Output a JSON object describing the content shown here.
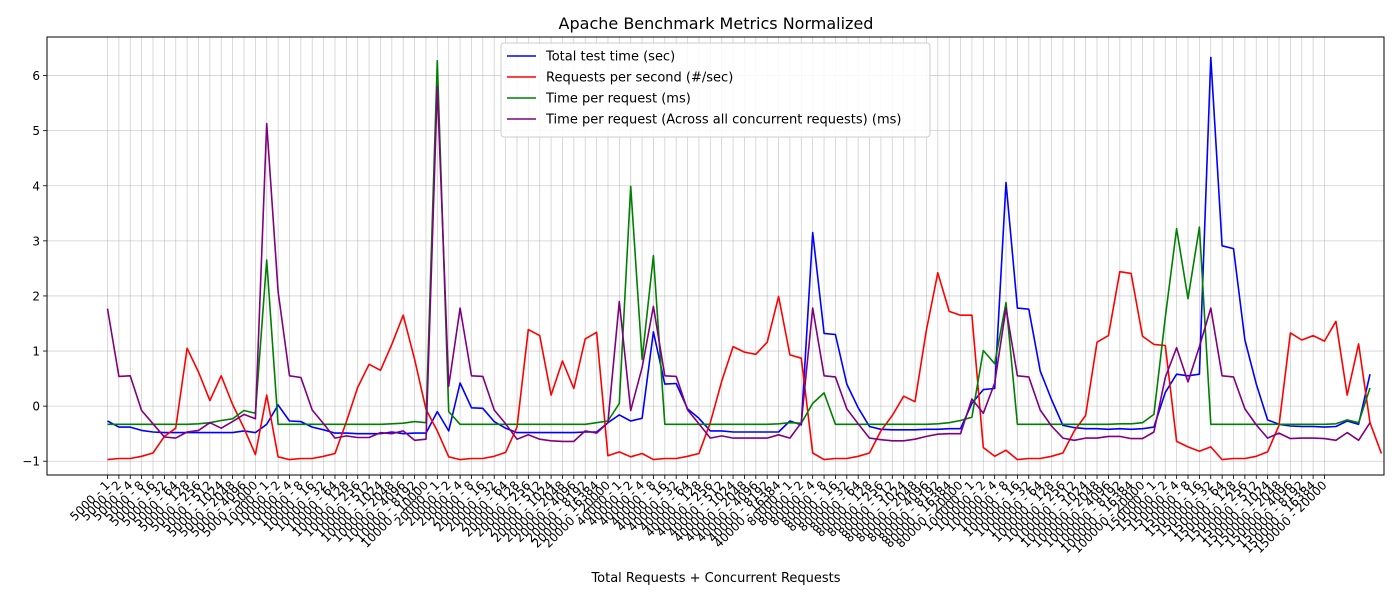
{
  "chart_data": {
    "type": "line",
    "title": "Apache Benchmark Metrics Normalized",
    "xlabel": "Total Requests + Concurrent Requests",
    "ylabel": "",
    "ylim": [
      -1.25,
      6.7
    ],
    "yticks": [
      -1,
      0,
      1,
      2,
      3,
      4,
      5,
      6
    ],
    "grid": true,
    "legend_position": "top-center",
    "groups": [
      {
        "total": "5000",
        "concurrency": [
          "1",
          "2",
          "4",
          "8",
          "16",
          "32",
          "64",
          "128",
          "256",
          "512",
          "1024",
          "2048",
          "4096",
          "5000"
        ]
      },
      {
        "total": "10000",
        "concurrency": [
          "1",
          "2",
          "4",
          "8",
          "16",
          "32",
          "64",
          "128",
          "256",
          "512",
          "1024",
          "2048",
          "4096",
          "8192",
          "10000"
        ]
      },
      {
        "total": "20000",
        "concurrency": [
          "1",
          "2",
          "4",
          "8",
          "16",
          "32",
          "64",
          "128",
          "256",
          "512",
          "1024",
          "2048",
          "4096",
          "8192",
          "16384",
          "20000"
        ]
      },
      {
        "total": "40000",
        "concurrency": [
          "1",
          "2",
          "4",
          "8",
          "16",
          "32",
          "64",
          "128",
          "256",
          "512",
          "1024",
          "2048",
          "4096",
          "8192",
          "16384"
        ]
      },
      {
        "total": "80000",
        "concurrency": [
          "1",
          "2",
          "4",
          "8",
          "16",
          "32",
          "64",
          "128",
          "256",
          "512",
          "1024",
          "2048",
          "4096",
          "8192",
          "16384",
          "20000"
        ]
      },
      {
        "total": "100000",
        "concurrency": [
          "1",
          "2",
          "4",
          "8",
          "16",
          "32",
          "64",
          "128",
          "256",
          "512",
          "1024",
          "2048",
          "4096",
          "8192",
          "16384",
          "20000"
        ]
      },
      {
        "total": "150000",
        "concurrency": [
          "1",
          "2",
          "4",
          "8",
          "16",
          "32",
          "64",
          "128",
          "256",
          "512",
          "1024",
          "2048",
          "4096",
          "8192",
          "16384",
          "20000"
        ]
      }
    ],
    "series": [
      {
        "name": "Total test time (sec)",
        "color": "#0000ff",
        "values": [
          -0.27,
          -0.38,
          -0.38,
          -0.44,
          -0.47,
          -0.48,
          -0.48,
          -0.48,
          -0.48,
          -0.48,
          -0.48,
          -0.48,
          -0.45,
          -0.48,
          -0.33,
          0.02,
          -0.27,
          -0.28,
          -0.38,
          -0.43,
          -0.49,
          -0.49,
          -0.5,
          -0.5,
          -0.5,
          -0.47,
          -0.5,
          -0.49,
          -0.49,
          -0.1,
          -0.45,
          0.42,
          -0.03,
          -0.04,
          -0.28,
          -0.4,
          -0.48,
          -0.48,
          -0.48,
          -0.48,
          -0.48,
          -0.48,
          -0.47,
          -0.47,
          -0.3,
          -0.16,
          -0.27,
          -0.22,
          1.35,
          0.4,
          0.41,
          -0.05,
          -0.22,
          -0.45,
          -0.45,
          -0.47,
          -0.47,
          -0.47,
          -0.47,
          -0.47,
          -0.27,
          -0.34,
          3.15,
          1.32,
          1.3,
          0.4,
          -0.03,
          -0.37,
          -0.42,
          -0.43,
          -0.43,
          -0.43,
          -0.42,
          -0.42,
          -0.41,
          -0.41,
          0.05,
          0.3,
          0.32,
          4.06,
          1.78,
          1.76,
          0.64,
          0.12,
          -0.35,
          -0.39,
          -0.41,
          -0.41,
          -0.42,
          -0.41,
          -0.42,
          -0.41,
          -0.38,
          0.25,
          0.58,
          0.55,
          0.58,
          6.33,
          2.91,
          2.86,
          1.2,
          0.4,
          -0.25,
          -0.33,
          -0.36,
          -0.37,
          -0.37,
          -0.38,
          -0.37,
          -0.27,
          -0.33,
          0.58
        ]
      },
      {
        "name": "Requests per second (#/sec)",
        "color": "#ff0000",
        "values": [
          -0.97,
          -0.95,
          -0.95,
          -0.91,
          -0.85,
          -0.55,
          -0.4,
          1.05,
          0.62,
          0.1,
          0.55,
          0.03,
          -0.4,
          -0.88,
          0.2,
          -0.92,
          -0.97,
          -0.95,
          -0.95,
          -0.91,
          -0.86,
          -0.28,
          0.34,
          0.76,
          0.65,
          1.12,
          1.65,
          0.85,
          -0.06,
          -0.45,
          -0.92,
          -0.97,
          -0.95,
          -0.95,
          -0.91,
          -0.84,
          -0.38,
          1.39,
          1.28,
          0.2,
          0.82,
          0.32,
          1.22,
          1.34,
          -0.9,
          -0.83,
          -0.92,
          -0.86,
          -0.97,
          -0.95,
          -0.95,
          -0.91,
          -0.86,
          -0.3,
          0.45,
          1.08,
          0.98,
          0.94,
          1.16,
          1.99,
          0.93,
          0.87,
          -0.85,
          -0.97,
          -0.95,
          -0.95,
          -0.91,
          -0.85,
          -0.45,
          -0.17,
          0.18,
          0.08,
          1.38,
          2.42,
          1.72,
          1.65,
          1.65,
          -0.75,
          -0.91,
          -0.8,
          -0.97,
          -0.95,
          -0.95,
          -0.91,
          -0.85,
          -0.45,
          -0.17,
          1.16,
          1.28,
          2.44,
          2.41,
          1.27,
          1.12,
          1.1,
          -0.64,
          -0.74,
          -0.82,
          -0.74,
          -0.97,
          -0.95,
          -0.95,
          -0.91,
          -0.83,
          -0.35,
          1.33,
          1.2,
          1.28,
          1.18,
          1.54,
          0.2,
          1.13,
          -0.3,
          -0.86
        ]
      },
      {
        "name": "Time per request (ms)",
        "color": "#008000",
        "values": [
          -0.33,
          -0.33,
          -0.33,
          -0.33,
          -0.33,
          -0.33,
          -0.33,
          -0.33,
          -0.32,
          -0.3,
          -0.26,
          -0.23,
          -0.08,
          -0.13,
          2.65,
          -0.33,
          -0.33,
          -0.33,
          -0.33,
          -0.33,
          -0.33,
          -0.33,
          -0.33,
          -0.33,
          -0.33,
          -0.32,
          -0.31,
          -0.28,
          -0.3,
          6.27,
          -0.1,
          -0.33,
          -0.33,
          -0.33,
          -0.33,
          -0.33,
          -0.33,
          -0.33,
          -0.33,
          -0.33,
          -0.33,
          -0.33,
          -0.33,
          -0.3,
          -0.27,
          0.05,
          3.99,
          0.85,
          2.73,
          -0.33,
          -0.33,
          -0.33,
          -0.33,
          -0.33,
          -0.33,
          -0.33,
          -0.33,
          -0.33,
          -0.33,
          -0.32,
          -0.3,
          -0.31,
          0.05,
          0.24,
          -0.33,
          -0.33,
          -0.33,
          -0.33,
          -0.33,
          -0.33,
          -0.33,
          -0.33,
          -0.33,
          -0.32,
          -0.3,
          -0.26,
          -0.2,
          1.01,
          0.77,
          1.88,
          -0.33,
          -0.33,
          -0.33,
          -0.33,
          -0.33,
          -0.33,
          -0.33,
          -0.33,
          -0.33,
          -0.32,
          -0.32,
          -0.3,
          -0.15,
          1.61,
          3.22,
          1.95,
          3.25,
          -0.33,
          -0.33,
          -0.33,
          -0.33,
          -0.33,
          -0.33,
          -0.33,
          -0.33,
          -0.33,
          -0.33,
          -0.33,
          -0.32,
          -0.25,
          -0.3,
          0.33
        ]
      },
      {
        "name": "Time per request (Across all concurrent requests) (ms)",
        "color": "#800080",
        "values": [
          1.77,
          0.54,
          0.55,
          -0.08,
          -0.32,
          -0.56,
          -0.58,
          -0.47,
          -0.44,
          -0.3,
          -0.4,
          -0.28,
          -0.15,
          -0.23,
          5.13,
          2.08,
          0.55,
          0.52,
          -0.07,
          -0.32,
          -0.58,
          -0.54,
          -0.57,
          -0.57,
          -0.48,
          -0.5,
          -0.45,
          -0.62,
          -0.6,
          5.8,
          0.36,
          1.78,
          0.55,
          0.54,
          -0.07,
          -0.32,
          -0.6,
          -0.52,
          -0.6,
          -0.63,
          -0.64,
          -0.64,
          -0.45,
          -0.49,
          -0.3,
          1.9,
          -0.08,
          0.7,
          1.81,
          0.55,
          0.54,
          -0.07,
          -0.32,
          -0.58,
          -0.54,
          -0.58,
          -0.58,
          -0.58,
          -0.58,
          -0.52,
          -0.58,
          -0.3,
          1.78,
          0.55,
          0.53,
          -0.05,
          -0.32,
          -0.58,
          -0.61,
          -0.63,
          -0.63,
          -0.6,
          -0.55,
          -0.51,
          -0.5,
          -0.5,
          0.13,
          -0.13,
          0.42,
          1.78,
          0.55,
          0.53,
          -0.07,
          -0.36,
          -0.58,
          -0.62,
          -0.58,
          -0.58,
          -0.55,
          -0.55,
          -0.59,
          -0.59,
          -0.47,
          0.52,
          1.06,
          0.44,
          1.08,
          1.78,
          0.55,
          0.53,
          -0.05,
          -0.34,
          -0.58,
          -0.49,
          -0.59,
          -0.58,
          -0.58,
          -0.59,
          -0.62,
          -0.48,
          -0.62,
          -0.3
        ]
      }
    ]
  }
}
